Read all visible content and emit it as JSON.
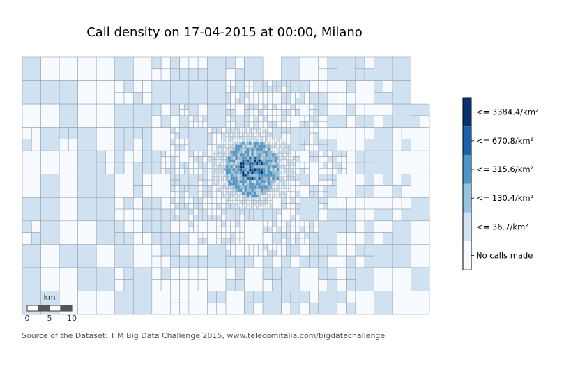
{
  "chart_data": {
    "type": "heatmap",
    "title": "Call density on 17-04-2015 at 00:00, Milano",
    "legend": {
      "placement": "right",
      "bins": [
        {
          "label": "No calls made",
          "color": "#f7fbff"
        },
        {
          "label": "<= 36.7/km²",
          "color": "#d0e1f2"
        },
        {
          "label": "<= 130.4/km²",
          "color": "#94c4df"
        },
        {
          "label": "<= 315.6/km²",
          "color": "#4a98c9"
        },
        {
          "label": "<= 670.8/km²",
          "color": "#1764ab"
        },
        {
          "label": "<= 3384.4/km²",
          "color": "#08306b"
        }
      ]
    },
    "scalebar": {
      "unit": "km",
      "ticks": [
        "0",
        "5",
        "10"
      ]
    }
  },
  "source": "Source of the Dataset: TIM Big Data Challenge 2015, www.telecomitalia.com/bigdatachallenge",
  "colors": {
    "grid_line": "#9aa3ad",
    "scalebar_dark": "#555555"
  }
}
